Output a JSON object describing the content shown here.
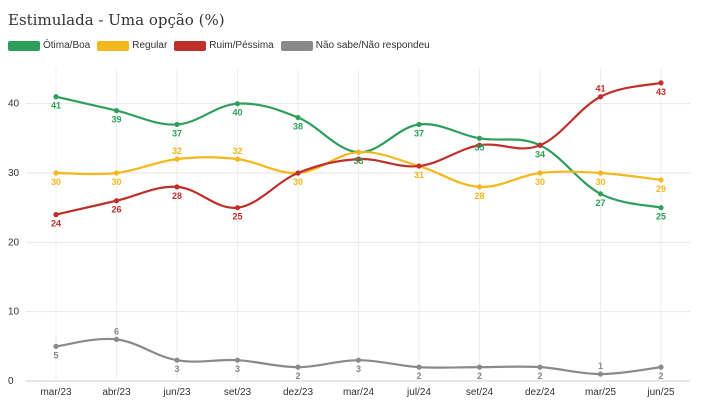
{
  "header": {
    "subtitle": "Estimulada - Uma opção (%)"
  },
  "legend": {
    "items": [
      {
        "label": "Ótima/Boa",
        "color": "#2e9e5b"
      },
      {
        "label": "Regular",
        "color": "#f5b81c"
      },
      {
        "label": "Ruim/Péssima",
        "color": "#c0302b"
      },
      {
        "label": "Não sabe/Não respondeu",
        "color": "#8a8a8a"
      }
    ]
  },
  "chart_data": {
    "type": "line",
    "title": "",
    "xlabel": "",
    "ylabel": "",
    "categories": [
      "mar/23",
      "abr/23",
      "jun/23",
      "set/23",
      "dez/23",
      "mar/24",
      "jul/24",
      "set/24",
      "dez/24",
      "mar/25",
      "jun/25"
    ],
    "ylim": [
      0,
      45
    ],
    "yticks": [
      0,
      10,
      20,
      30,
      40
    ],
    "grid": true,
    "legend_position": "top-left",
    "series": [
      {
        "name": "Ótima/Boa",
        "color": "#2e9e5b",
        "values": [
          41,
          39,
          37,
          40,
          38,
          33,
          37,
          35,
          34,
          27,
          25
        ],
        "labels": [
          "41",
          "39",
          "37",
          "40",
          "38",
          "33",
          "37",
          "35",
          "34",
          "27",
          "25"
        ]
      },
      {
        "name": "Regular",
        "color": "#f5b81c",
        "values": [
          30,
          30,
          32,
          32,
          30,
          33,
          31,
          28,
          30,
          30,
          29
        ],
        "labels": [
          "30",
          "30",
          "32",
          "32",
          "30",
          "",
          "31",
          "28",
          "30",
          "30",
          "29"
        ]
      },
      {
        "name": "Ruim/Péssima",
        "color": "#c0302b",
        "values": [
          24,
          26,
          28,
          25,
          30,
          32,
          31,
          34,
          34,
          41,
          43
        ],
        "labels": [
          "24",
          "26",
          "28",
          "25",
          "",
          "",
          "",
          "",
          "",
          "41",
          "43"
        ]
      },
      {
        "name": "Não sabe/Não respondeu",
        "color": "#8a8a8a",
        "values": [
          5,
          6,
          3,
          3,
          2,
          3,
          2,
          2,
          2,
          1,
          2
        ],
        "labels": [
          "5",
          "6",
          "3",
          "3",
          "2",
          "3",
          "2",
          "2",
          "2",
          "1",
          "2"
        ]
      }
    ]
  }
}
